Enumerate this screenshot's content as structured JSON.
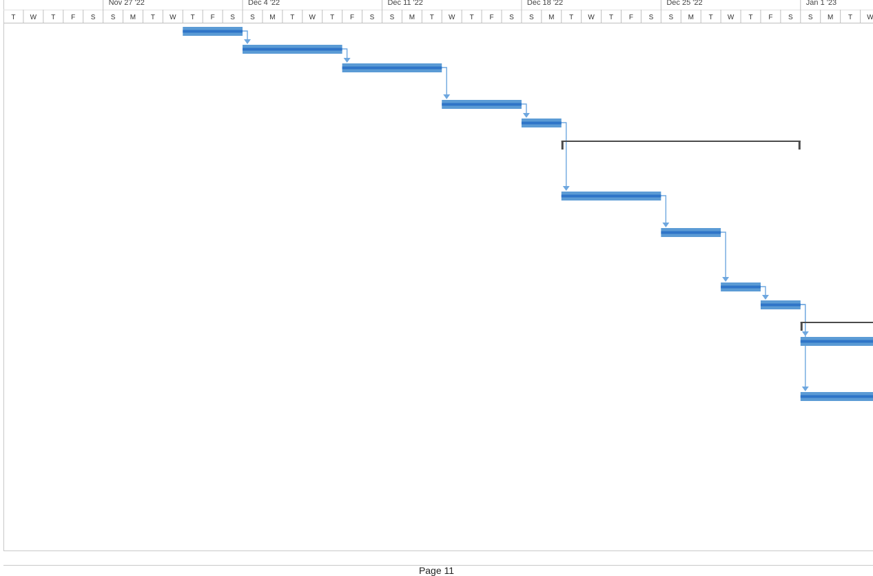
{
  "page": {
    "label": "Page 11"
  },
  "chart_data": {
    "type": "gantt",
    "week_labels": [
      "Nov 27 '22",
      "Dec 4 '22",
      "Dec 11 '22",
      "Dec 18 '22",
      "Dec 25 '22",
      "Jan 1 '23"
    ],
    "week_starts": [
      "2022-11-27",
      "2022-12-04",
      "2022-12-11",
      "2022-12-18",
      "2022-12-25",
      "2023-01-01"
    ],
    "day_letters": [
      "T",
      "W",
      "T",
      "F",
      "S",
      "S",
      "M",
      "T",
      "W",
      "T",
      "F",
      "S",
      "S",
      "M",
      "T",
      "W",
      "T",
      "F",
      "S",
      "S",
      "M",
      "T",
      "W",
      "T",
      "F",
      "S",
      "S",
      "M",
      "T",
      "W",
      "T",
      "F",
      "S",
      "S",
      "M",
      "T",
      "W",
      "T",
      "F",
      "S",
      "S",
      "M",
      "T",
      "W"
    ],
    "first_day": "2022-11-22",
    "tasks": [
      {
        "type": "task",
        "start": "2022-12-01",
        "end": "2022-12-03"
      },
      {
        "type": "task",
        "start": "2022-12-04",
        "end": "2022-12-08"
      },
      {
        "type": "task",
        "start": "2022-12-09",
        "end": "2022-12-13"
      },
      {
        "type": "task",
        "start": "2022-12-14",
        "end": "2022-12-17"
      },
      {
        "type": "task",
        "start": "2022-12-18",
        "end": "2022-12-19"
      },
      {
        "type": "summary",
        "start": "2022-12-20",
        "end": "2022-12-31"
      },
      {
        "type": "task",
        "start": "2022-12-20",
        "end": "2022-12-24"
      },
      {
        "type": "task",
        "start": "2022-12-25",
        "end": "2022-12-27"
      },
      {
        "type": "task",
        "start": "2022-12-28",
        "end": "2022-12-29"
      },
      {
        "type": "task",
        "start": "2022-12-30",
        "end": "2022-12-31"
      },
      {
        "type": "summary",
        "start": "2023-01-01",
        "end": "2023-01-04"
      },
      {
        "type": "task",
        "start": "2023-01-01",
        "end": "2023-01-04"
      },
      {
        "type": "task",
        "start": "2023-01-01",
        "end": "2023-01-04"
      }
    ],
    "dependencies": [
      [
        0,
        1
      ],
      [
        1,
        2
      ],
      [
        2,
        3
      ],
      [
        3,
        4
      ],
      [
        4,
        6
      ],
      [
        6,
        7
      ],
      [
        7,
        8
      ],
      [
        8,
        9
      ],
      [
        9,
        11
      ],
      [
        9,
        12
      ]
    ],
    "colors": {
      "bar": "#5b9bd5",
      "bar_dark": "#2f75c8",
      "link": "#6ea7df",
      "summary": "#4a4a4a",
      "grid": "#bfbfbf"
    }
  }
}
